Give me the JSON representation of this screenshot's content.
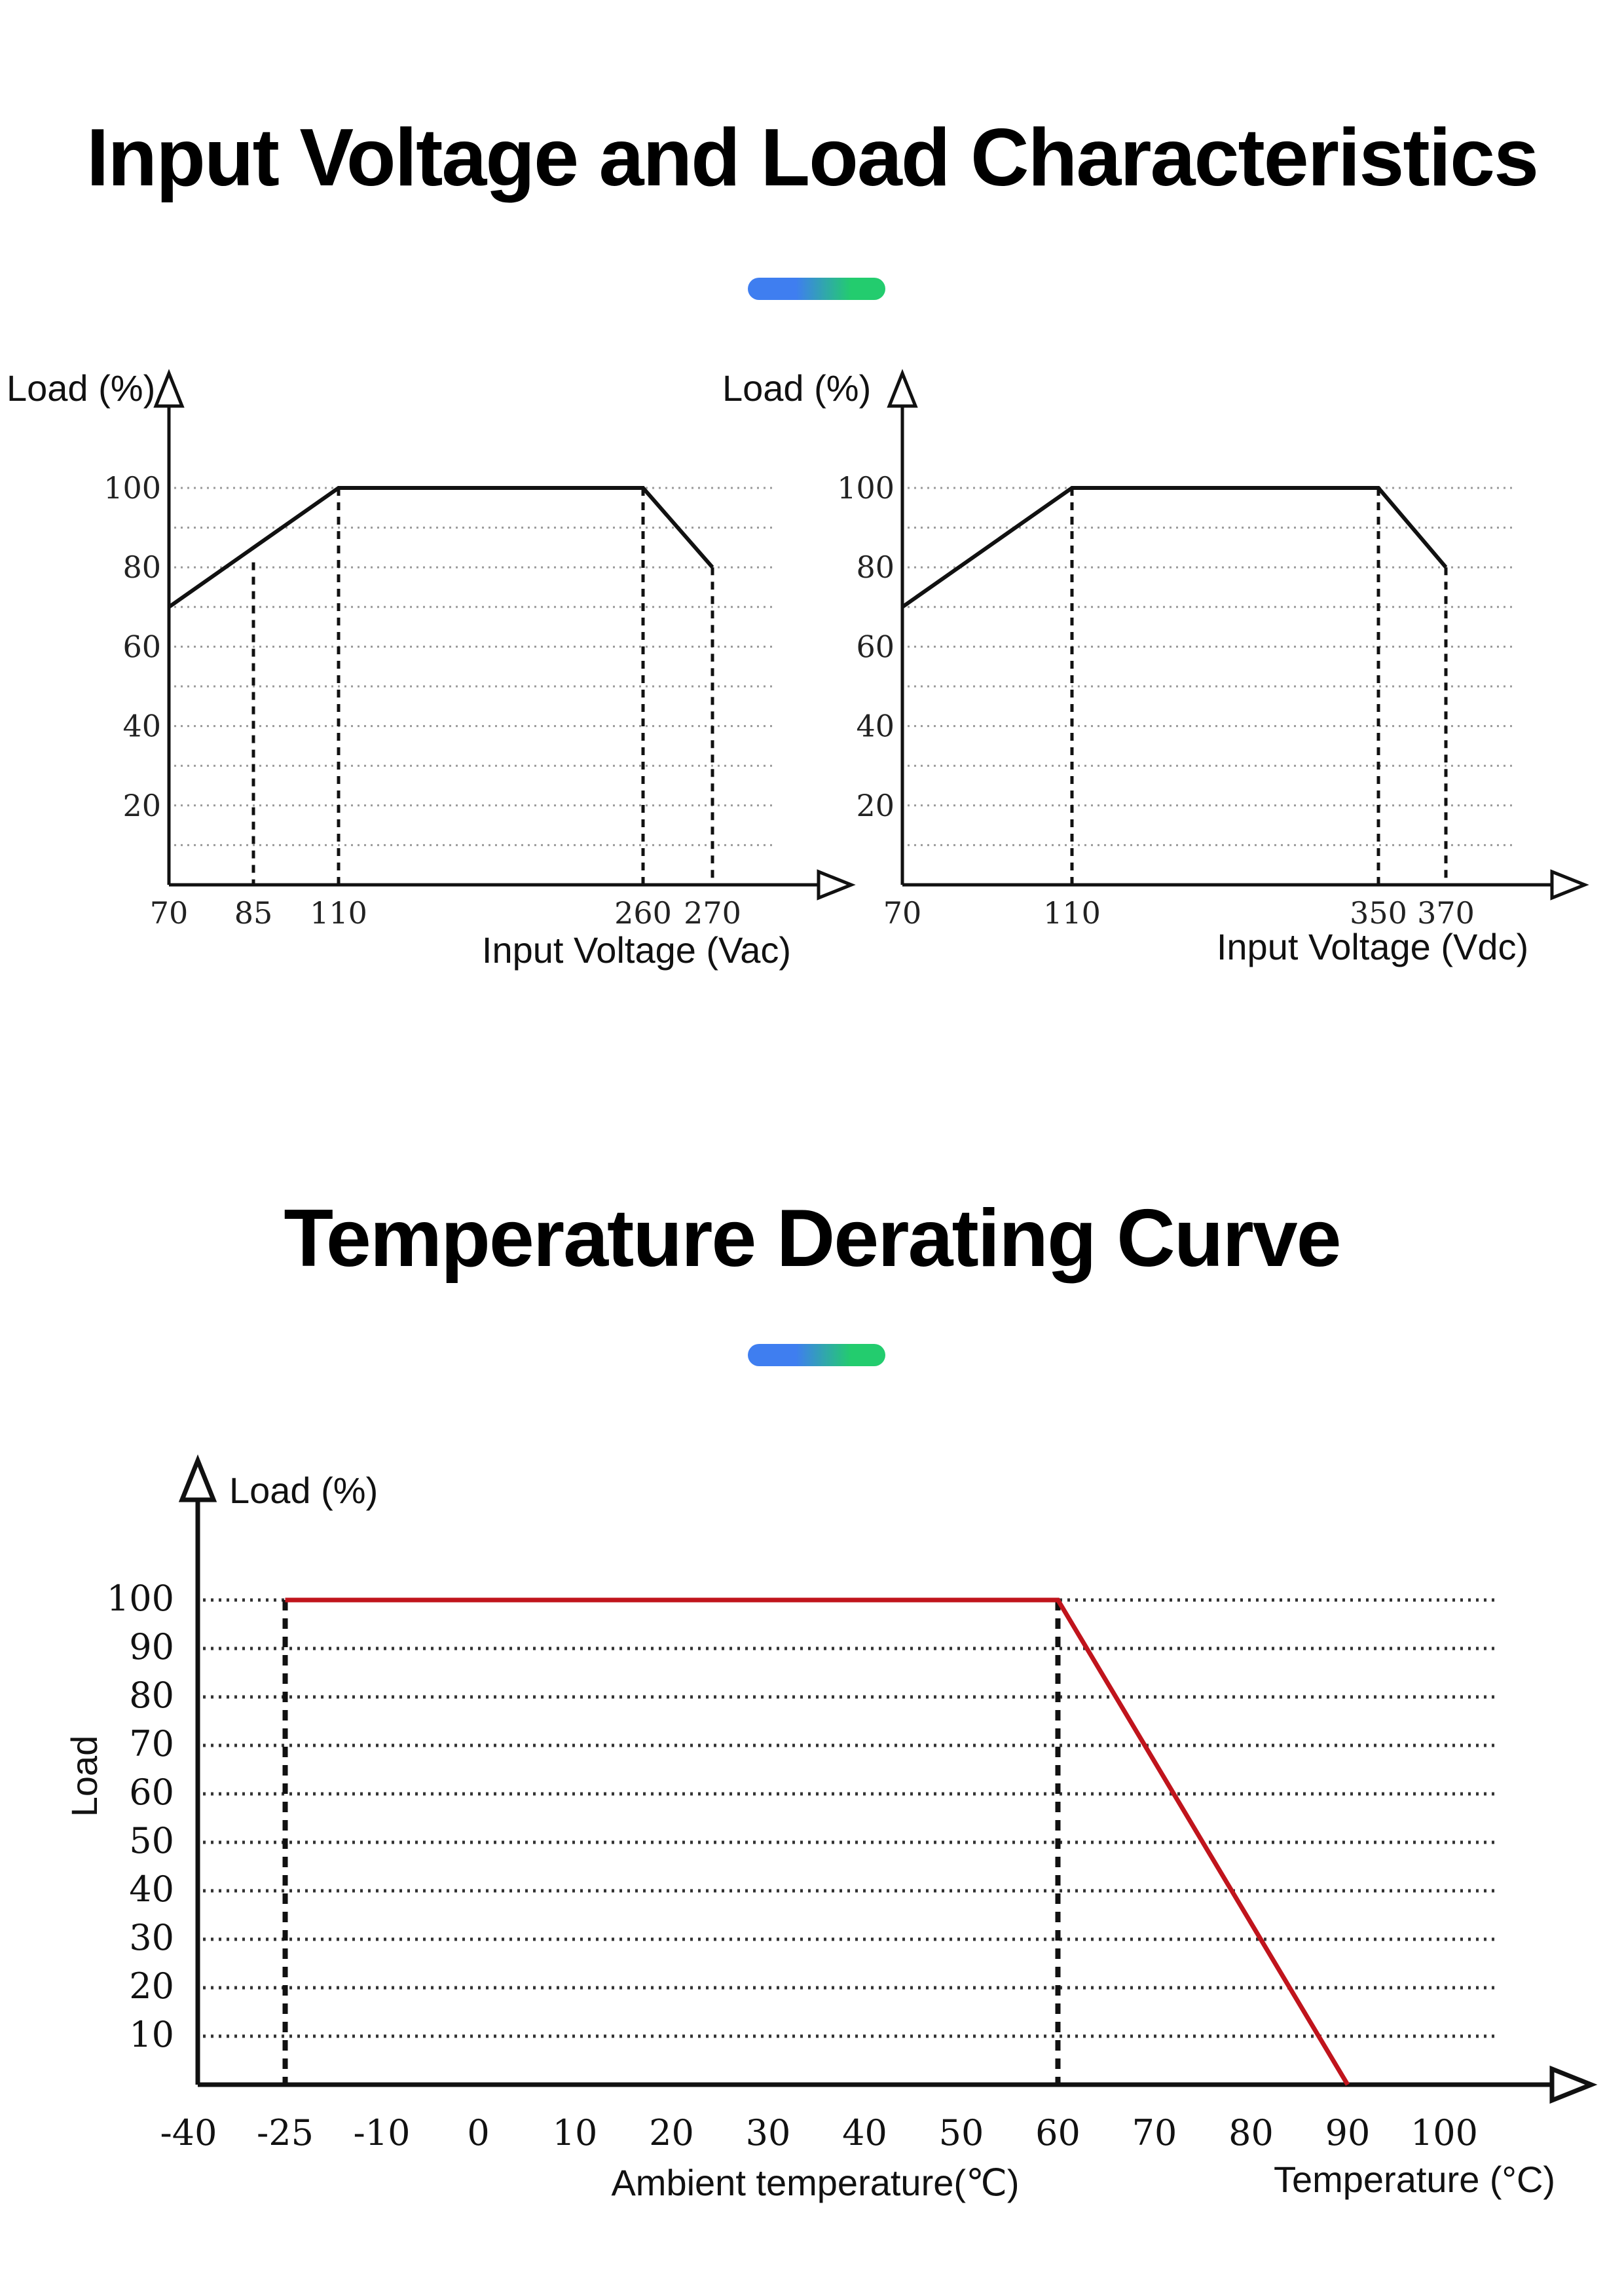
{
  "titles": {
    "section1": "Input Voltage and Load Characteristics",
    "section2": "Temperature Derating Curve"
  },
  "accent": {
    "start": "#3f7ef0",
    "end": "#23cc6e"
  },
  "chart_data": [
    {
      "type": "line",
      "xlabel": "Input Voltage (Vac)",
      "ylabel": "Load (%)",
      "xticks": [
        70,
        85,
        110,
        260,
        270
      ],
      "xtick_labels": [
        "70",
        "85",
        "110",
        "260",
        "270"
      ],
      "yticks": [
        20,
        40,
        60,
        80,
        100
      ],
      "ytick_labels": [
        "20",
        "40",
        "60",
        "80",
        "100"
      ],
      "xlim": [
        70,
        300
      ],
      "ylim": [
        0,
        100
      ],
      "grid": true,
      "reference_lines_x": [
        85,
        110,
        260,
        270
      ],
      "series": [
        {
          "x": [
            70,
            110,
            260,
            270
          ],
          "y": [
            70,
            100,
            100,
            80
          ]
        }
      ],
      "color": "#111111"
    },
    {
      "type": "line",
      "xlabel": "Input Voltage (Vdc)",
      "ylabel": "Load (%)",
      "xticks": [
        70,
        110,
        350,
        370
      ],
      "xtick_labels": [
        "70",
        "110",
        "350",
        "370"
      ],
      "yticks": [
        20,
        40,
        60,
        80,
        100
      ],
      "ytick_labels": [
        "20",
        "40",
        "60",
        "80",
        "100"
      ],
      "xlim": [
        70,
        400
      ],
      "ylim": [
        0,
        100
      ],
      "grid": true,
      "reference_lines_x": [
        110,
        350,
        370
      ],
      "series": [
        {
          "x": [
            70,
            110,
            350,
            370
          ],
          "y": [
            70,
            100,
            100,
            80
          ]
        }
      ],
      "color": "#111111"
    },
    {
      "type": "line",
      "xlabel": "Ambient temperature(℃)",
      "xlabel_right": "Temperature (°C)",
      "ylabel": "Load (%)",
      "ylabel_side": "Load",
      "xticks": [
        -40,
        -25,
        -10,
        0,
        10,
        20,
        30,
        40,
        50,
        60,
        70,
        80,
        90,
        100
      ],
      "xtick_labels": [
        "-40",
        "-25",
        "-10",
        "0",
        "10",
        "20",
        "30",
        "40",
        "50",
        "60",
        "70",
        "80",
        "90",
        "100"
      ],
      "yticks": [
        10,
        20,
        30,
        40,
        50,
        60,
        70,
        80,
        90,
        100
      ],
      "ytick_labels": [
        "10",
        "20",
        "30",
        "40",
        "50",
        "60",
        "70",
        "80",
        "90",
        "100"
      ],
      "xlim": [
        -40,
        100
      ],
      "ylim": [
        0,
        100
      ],
      "grid": true,
      "reference_lines_x": [
        -25,
        60
      ],
      "series": [
        {
          "x": [
            -25,
            60,
            90
          ],
          "y": [
            100,
            100,
            0
          ]
        }
      ],
      "color": "#c0141c"
    }
  ]
}
